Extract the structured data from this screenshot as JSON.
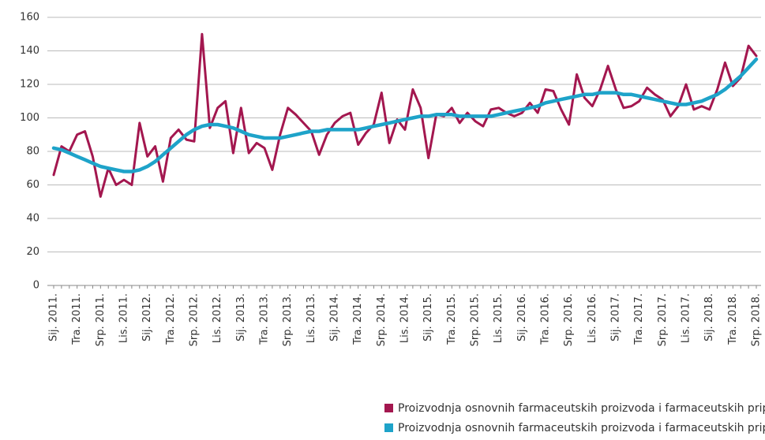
{
  "chart_data": {
    "type": "line",
    "categories": [
      "Sij. 2011.",
      null,
      null,
      "Tra. 2011.",
      null,
      null,
      "Srp. 2011.",
      null,
      null,
      "Lis. 2011.",
      null,
      null,
      "Sij. 2012.",
      null,
      null,
      "Tra. 2012.",
      null,
      null,
      "Srp. 2012.",
      null,
      null,
      "Lis. 2012.",
      null,
      null,
      "Sij. 2013.",
      null,
      null,
      "Tra. 2013.",
      null,
      null,
      "Srp. 2013.",
      null,
      null,
      "Lis. 2013.",
      null,
      null,
      "Sij. 2014.",
      null,
      null,
      "Tra. 2014.",
      null,
      null,
      "Srp. 2014.",
      null,
      null,
      "Lis. 2014.",
      null,
      null,
      "Sij. 2015.",
      null,
      null,
      "Tra. 2015.",
      null,
      null,
      "Srp. 2015.",
      null,
      null,
      "Lis. 2015.",
      null,
      null,
      "Sij. 2016.",
      null,
      null,
      "Tra. 2016.",
      null,
      null,
      "Srp. 2016.",
      null,
      null,
      "Lis. 2016.",
      null,
      null,
      "Sij. 2017.",
      null,
      null,
      "Tra. 2017.",
      null,
      null,
      "Srp. 2017.",
      null,
      null,
      "Lis. 2017.",
      null,
      null,
      "Sij. 2018.",
      null,
      null,
      "Tra. 2018.",
      null,
      null,
      "Srp. 2018."
    ],
    "series": [
      {
        "name": "Proizvodnja osnovnih farmaceutskih proizvoda i  farmaceutskih pripravaka - desezonirano",
        "color": "#a3174f",
        "width": 3,
        "values": [
          66,
          83,
          80,
          90,
          92,
          77,
          53,
          70,
          60,
          63,
          60,
          97,
          77,
          83,
          62,
          88,
          93,
          87,
          86,
          150,
          94,
          106,
          110,
          79,
          106,
          79,
          85,
          82,
          69,
          90,
          106,
          102,
          97,
          92,
          78,
          90,
          97,
          101,
          103,
          84,
          91,
          96,
          115,
          85,
          99,
          93,
          117,
          106,
          76,
          102,
          101,
          106,
          97,
          103,
          98,
          95,
          105,
          106,
          103,
          101,
          103,
          109,
          103,
          117,
          116,
          105,
          96,
          126,
          112,
          107,
          117,
          131,
          117,
          106,
          107,
          110,
          118,
          114,
          111,
          101,
          107,
          120,
          105,
          107,
          105,
          117,
          133,
          119,
          124,
          143,
          137
        ]
      },
      {
        "name": "Proizvodnja osnovnih farmaceutskih proizvoda i  farmaceutskih pripravaka - trend",
        "color": "#1ea3c9",
        "width": 4.5,
        "values": [
          82,
          81,
          79,
          77,
          75,
          73,
          71,
          70,
          69,
          68,
          68,
          69,
          71,
          74,
          78,
          82,
          86,
          90,
          93,
          95,
          96,
          96,
          95,
          94,
          92,
          90,
          89,
          88,
          88,
          88,
          89,
          90,
          91,
          92,
          92,
          93,
          93,
          93,
          93,
          93,
          94,
          95,
          96,
          97,
          98,
          99,
          100,
          101,
          101,
          102,
          102,
          102,
          101,
          101,
          101,
          101,
          101,
          102,
          103,
          104,
          105,
          106,
          107,
          109,
          110,
          111,
          112,
          113,
          114,
          114,
          115,
          115,
          115,
          114,
          114,
          113,
          112,
          111,
          110,
          109,
          108,
          108,
          109,
          110,
          112,
          114,
          117,
          121,
          125,
          130,
          135
        ]
      }
    ],
    "ylim": [
      0,
      160
    ],
    "yticks": [
      0,
      20,
      40,
      60,
      80,
      100,
      120,
      140,
      160
    ],
    "grid": true
  }
}
